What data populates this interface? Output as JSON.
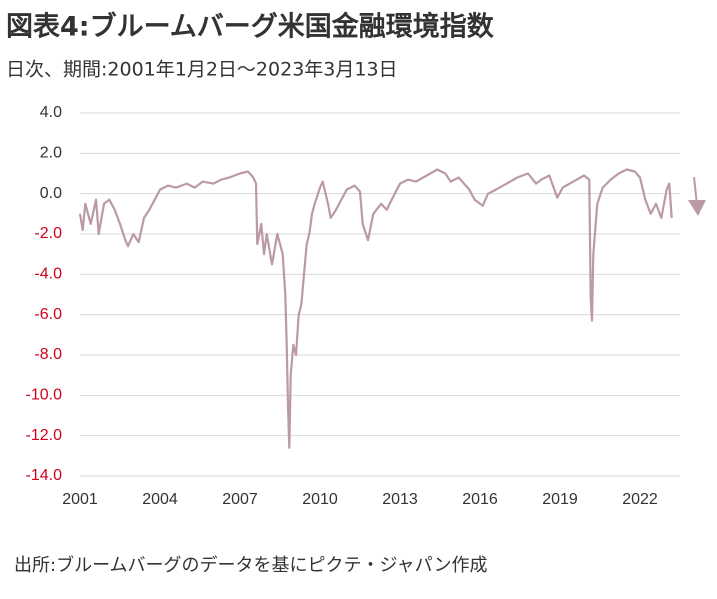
{
  "chart_data": {
    "type": "line",
    "title": "図表4:ブルームバーグ米国金融環境指数",
    "subtitle": "日次、期間:2001年1月2日～2023年3月13日",
    "source": "出所:ブルームバーグのデータを基にピクテ・ジャパン作成",
    "color": "#bb9aa5",
    "negative_tick_color": "#d0021b",
    "grid": true,
    "xlim": [
      2001,
      2023.2
    ],
    "xticks": [
      2001,
      2004,
      2007,
      2010,
      2013,
      2016,
      2019,
      2022
    ],
    "ylim": [
      -14,
      4
    ],
    "yticks": [
      {
        "value": 4,
        "label": "4.0"
      },
      {
        "value": 2,
        "label": "2.0"
      },
      {
        "value": 0,
        "label": "0.0"
      },
      {
        "value": -2,
        "label": "-2.0"
      },
      {
        "value": -4,
        "label": "-4.0"
      },
      {
        "value": -6,
        "label": "-6.0"
      },
      {
        "value": -8,
        "label": "-8.0"
      },
      {
        "value": -10,
        "label": "-10.0"
      },
      {
        "value": -12,
        "label": "-12.0"
      },
      {
        "value": -14,
        "label": "-14.0"
      }
    ],
    "x": [
      2001.0,
      2001.1,
      2001.2,
      2001.4,
      2001.6,
      2001.7,
      2001.9,
      2002.1,
      2002.3,
      2002.5,
      2002.7,
      2002.8,
      2003.0,
      2003.2,
      2003.4,
      2003.6,
      2003.8,
      2004.0,
      2004.3,
      2004.6,
      2005.0,
      2005.3,
      2005.6,
      2006.0,
      2006.3,
      2006.6,
      2007.0,
      2007.3,
      2007.5,
      2007.6,
      2007.65,
      2007.8,
      2007.9,
      2008.0,
      2008.2,
      2008.4,
      2008.6,
      2008.7,
      2008.75,
      2008.8,
      2008.85,
      2008.9,
      2009.0,
      2009.1,
      2009.2,
      2009.3,
      2009.4,
      2009.5,
      2009.6,
      2009.7,
      2009.8,
      2010.0,
      2010.1,
      2010.3,
      2010.4,
      2010.6,
      2010.8,
      2011.0,
      2011.3,
      2011.5,
      2011.6,
      2011.8,
      2012.0,
      2012.3,
      2012.5,
      2012.8,
      2013.0,
      2013.3,
      2013.6,
      2014.0,
      2014.4,
      2014.7,
      2014.9,
      2015.2,
      2015.6,
      2015.8,
      2016.1,
      2016.3,
      2016.6,
      2017.0,
      2017.4,
      2017.8,
      2018.1,
      2018.3,
      2018.6,
      2018.9,
      2019.1,
      2019.5,
      2019.9,
      2020.1,
      2020.15,
      2020.2,
      2020.25,
      2020.4,
      2020.6,
      2020.9,
      2021.2,
      2021.5,
      2021.8,
      2022.0,
      2022.2,
      2022.4,
      2022.6,
      2022.8,
      2023.0,
      2023.1,
      2023.19
    ],
    "values": [
      -1.0,
      -1.8,
      -0.5,
      -1.5,
      -0.3,
      -2.0,
      -0.5,
      -0.3,
      -0.8,
      -1.5,
      -2.3,
      -2.6,
      -2.0,
      -2.4,
      -1.2,
      -0.8,
      -0.3,
      0.2,
      0.4,
      0.3,
      0.5,
      0.3,
      0.6,
      0.5,
      0.7,
      0.8,
      1.0,
      1.1,
      0.8,
      0.5,
      -2.5,
      -1.5,
      -3.0,
      -2.0,
      -3.5,
      -2.0,
      -3.0,
      -5.0,
      -7.5,
      -10.5,
      -12.6,
      -9.0,
      -7.5,
      -8.0,
      -6.0,
      -5.5,
      -4.0,
      -2.5,
      -2.0,
      -1.0,
      -0.5,
      0.3,
      0.6,
      -0.5,
      -1.2,
      -0.8,
      -0.3,
      0.2,
      0.4,
      0.1,
      -1.5,
      -2.3,
      -1.0,
      -0.5,
      -0.8,
      0.0,
      0.5,
      0.7,
      0.6,
      0.9,
      1.2,
      1.0,
      0.6,
      0.8,
      0.2,
      -0.3,
      -0.6,
      0.0,
      0.2,
      0.5,
      0.8,
      1.0,
      0.5,
      0.7,
      0.9,
      -0.2,
      0.3,
      0.6,
      0.9,
      0.7,
      -5.2,
      -6.3,
      -3.0,
      -0.5,
      0.3,
      0.7,
      1.0,
      1.2,
      1.1,
      0.8,
      -0.3,
      -1.0,
      -0.5,
      -1.2,
      0.2,
      0.5,
      -1.2
    ]
  }
}
